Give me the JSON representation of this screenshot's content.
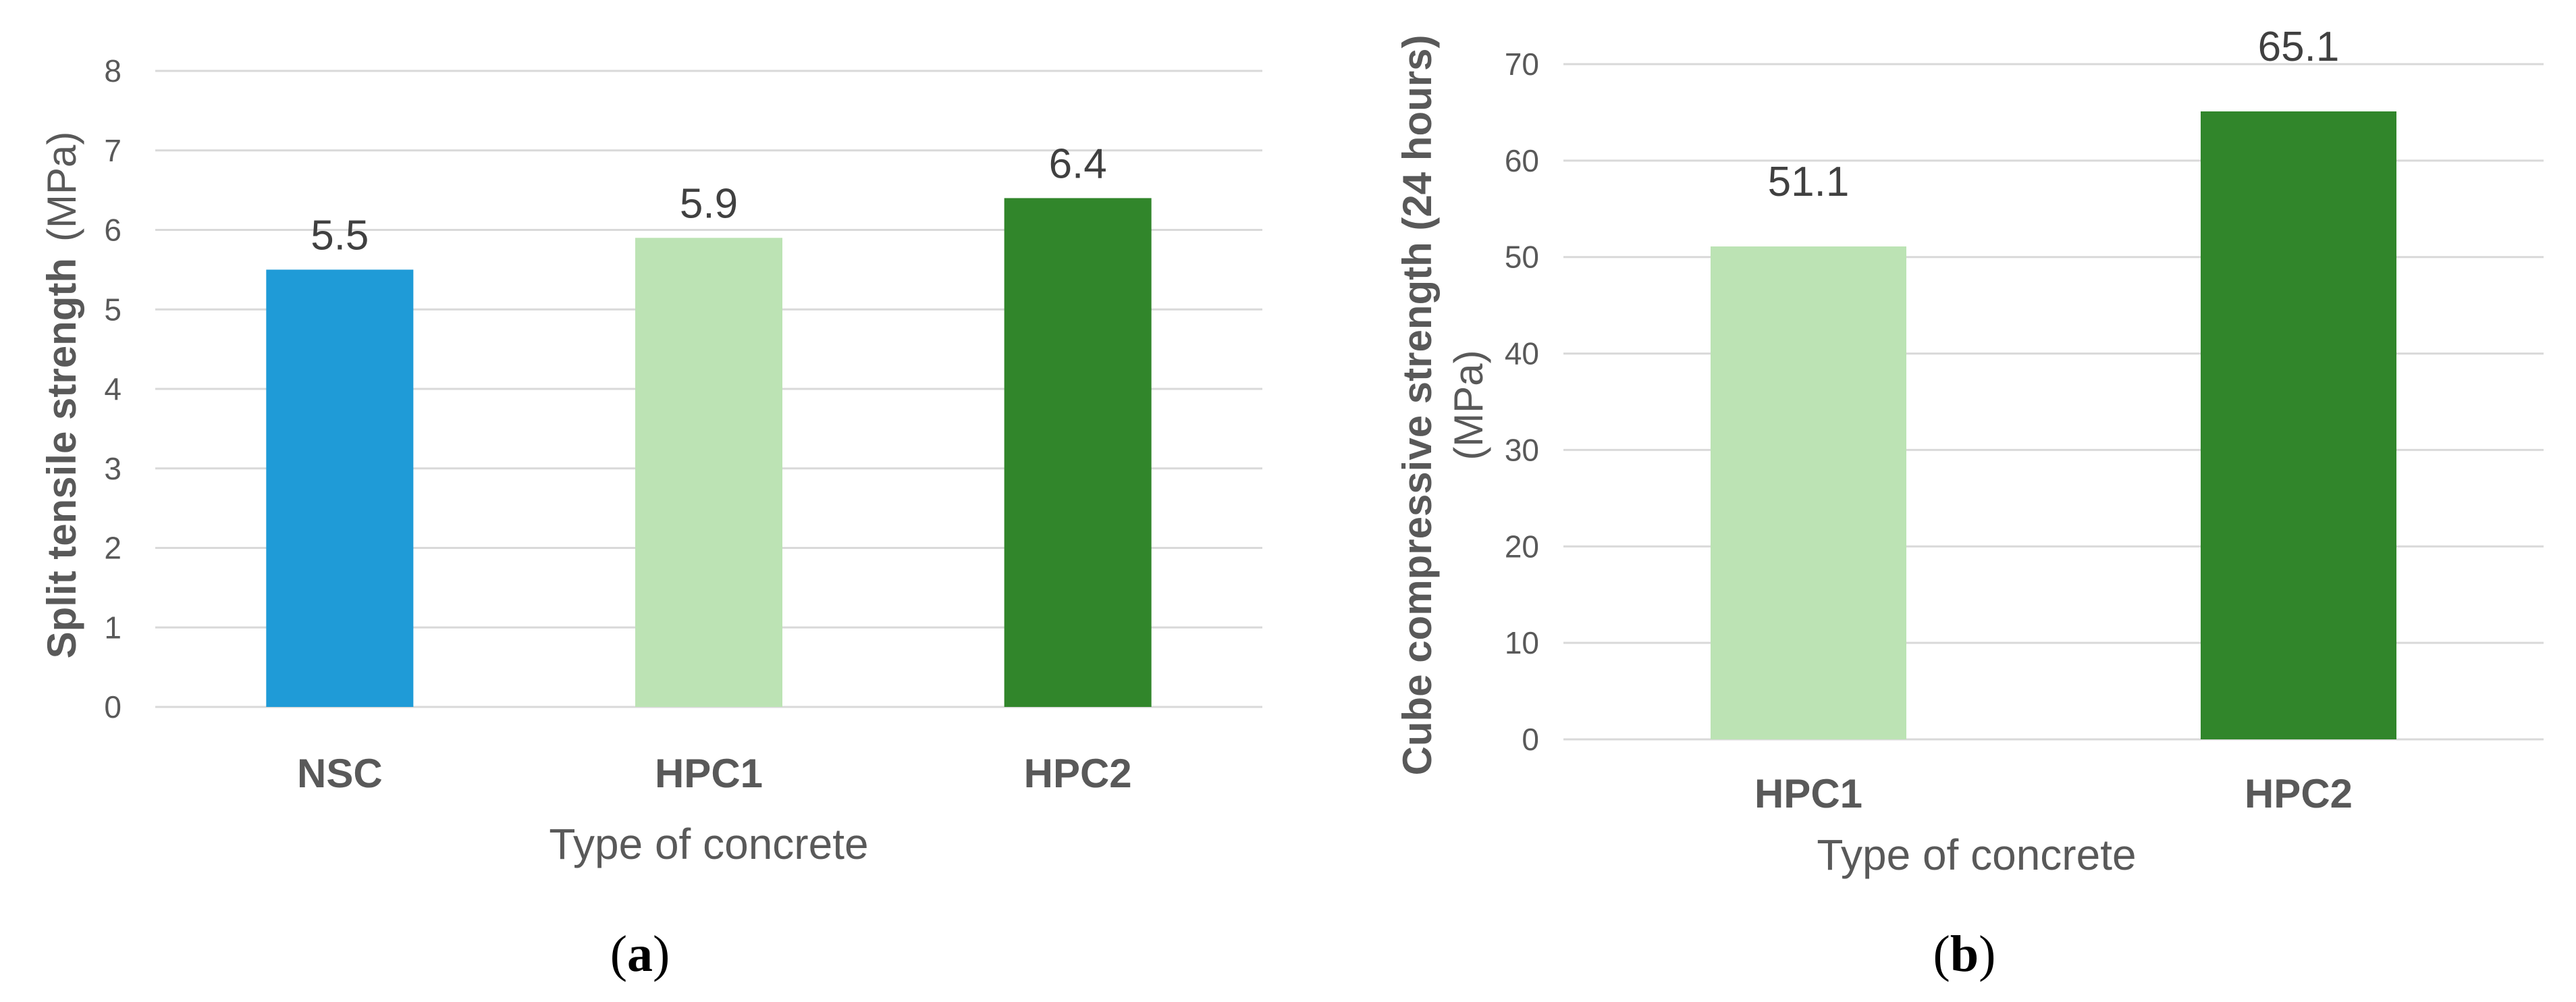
{
  "chart_data": [
    {
      "type": "bar",
      "panel_label": "a",
      "categories": [
        "NSC",
        "HPC1",
        "HPC2"
      ],
      "values": [
        5.5,
        5.9,
        6.4
      ],
      "data_labels": [
        "5.5",
        "5.9",
        "6.4"
      ],
      "colors": [
        "#1f9bd7",
        "#bce3b4",
        "#31862b"
      ],
      "xlabel": "Type of concrete",
      "ylabel_bold": "Split tensile strength",
      "ylabel_unit": "(MPa)",
      "ylim": [
        0,
        8
      ],
      "yticks": [
        0,
        1,
        2,
        3,
        4,
        5,
        6,
        7,
        8
      ],
      "ytick_labels": [
        "0",
        "1",
        "2",
        "3",
        "4",
        "5",
        "6",
        "7",
        "8"
      ],
      "grid": true,
      "legend": "none"
    },
    {
      "type": "bar",
      "panel_label": "b",
      "categories": [
        "HPC1",
        "HPC2"
      ],
      "values": [
        51.1,
        65.1
      ],
      "data_labels": [
        "51.1",
        "65.1"
      ],
      "colors": [
        "#bce3b4",
        "#31862b"
      ],
      "xlabel": "Type of concrete",
      "ylabel_bold": "Cube compressive strength (24 hours)",
      "ylabel_unit": "(MPa)",
      "ylim": [
        0,
        70
      ],
      "yticks": [
        0,
        10,
        20,
        30,
        40,
        50,
        60,
        70
      ],
      "ytick_labels": [
        "0",
        "10",
        "20",
        "30",
        "40",
        "50",
        "60",
        "70"
      ],
      "grid": true,
      "legend": "none"
    }
  ]
}
